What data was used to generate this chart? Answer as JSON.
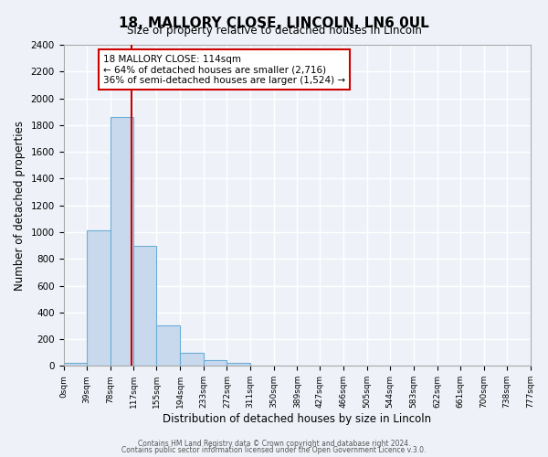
{
  "title": "18, MALLORY CLOSE, LINCOLN, LN6 0UL",
  "subtitle": "Size of property relative to detached houses in Lincoln",
  "xlabel": "Distribution of detached houses by size in Lincoln",
  "ylabel": "Number of detached properties",
  "bin_edges": [
    0,
    39,
    78,
    117,
    155,
    194,
    233,
    272,
    311,
    350,
    389,
    427,
    466,
    505,
    544,
    583,
    622,
    661,
    700,
    738,
    777
  ],
  "bin_labels": [
    "0sqm",
    "39sqm",
    "78sqm",
    "117sqm",
    "155sqm",
    "194sqm",
    "233sqm",
    "272sqm",
    "311sqm",
    "350sqm",
    "389sqm",
    "427sqm",
    "466sqm",
    "505sqm",
    "544sqm",
    "583sqm",
    "622sqm",
    "661sqm",
    "700sqm",
    "738sqm",
    "777sqm"
  ],
  "bar_heights": [
    20,
    1010,
    1860,
    900,
    300,
    100,
    40,
    20,
    0,
    0,
    0,
    0,
    0,
    0,
    0,
    0,
    0,
    0,
    0,
    0
  ],
  "bar_color": "#c8d9ee",
  "bar_edge_color": "#6baed6",
  "property_line_x": 114,
  "property_line_color": "#cc0000",
  "annotation_title": "18 MALLORY CLOSE: 114sqm",
  "annotation_line1": "← 64% of detached houses are smaller (2,716)",
  "annotation_line2": "36% of semi-detached houses are larger (1,524) →",
  "ylim": [
    0,
    2400
  ],
  "yticks": [
    0,
    200,
    400,
    600,
    800,
    1000,
    1200,
    1400,
    1600,
    1800,
    2000,
    2200,
    2400
  ],
  "footer1": "Contains HM Land Registry data © Crown copyright and database right 2024.",
  "footer2": "Contains public sector information licensed under the Open Government Licence v.3.0.",
  "bg_color": "#eef2f8",
  "grid_color": "#d8dde8",
  "plot_bg_color": "#eef2f8"
}
